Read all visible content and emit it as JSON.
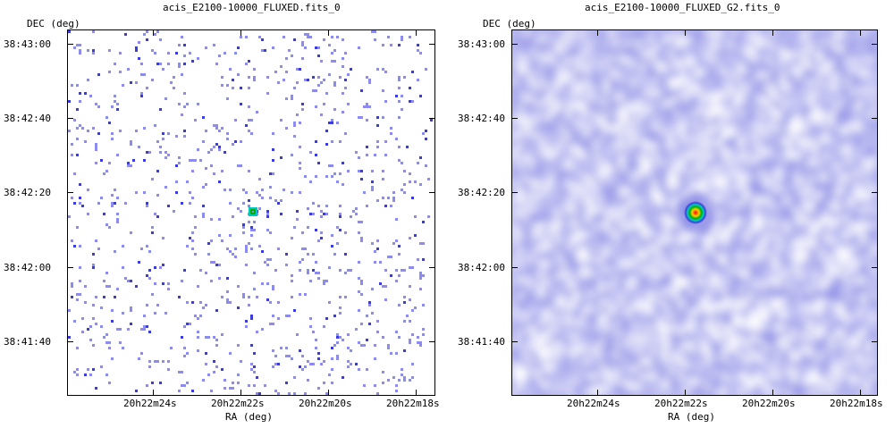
{
  "chart_data": [
    {
      "type": "heatmap",
      "title": "acis_E2100-10000_FLUXED.fits_0",
      "xlabel": "RA (deg)",
      "ylabel": "DEC (deg)",
      "x_ticks": [
        "20h22m24s",
        "20h22m22s",
        "20h22m20s",
        "20h22m18s"
      ],
      "y_ticks": [
        "38:43:00",
        "38:42:40",
        "38:42:20",
        "38:42:00",
        "38:41:40"
      ],
      "source": {
        "ra": "20h22m21.6s",
        "dec": "38:42:15"
      },
      "colormap": [
        "#ffffff",
        "#8c8cf0",
        "#3c3cd8",
        "#00c8c8",
        "#00b000",
        "#ffd000",
        "#ff0000"
      ]
    },
    {
      "type": "heatmap",
      "title": "acis_E2100-10000_FLUXED_G2.fits_0",
      "xlabel": "RA (deg)",
      "ylabel": "DEC (deg)",
      "x_ticks": [
        "20h22m24s",
        "20h22m22s",
        "20h22m20s",
        "20h22m18s"
      ],
      "y_ticks": [
        "38:43:00",
        "38:42:40",
        "38:42:20",
        "38:42:00",
        "38:41:40"
      ],
      "source": {
        "ra": "20h22m21.6s",
        "dec": "38:42:15"
      },
      "colormap": [
        "#ffffff",
        "#c8c8f5",
        "#8c8ce6",
        "#3c3cd8",
        "#00c8c8",
        "#00b000",
        "#ffd000",
        "#ff0000"
      ]
    }
  ]
}
